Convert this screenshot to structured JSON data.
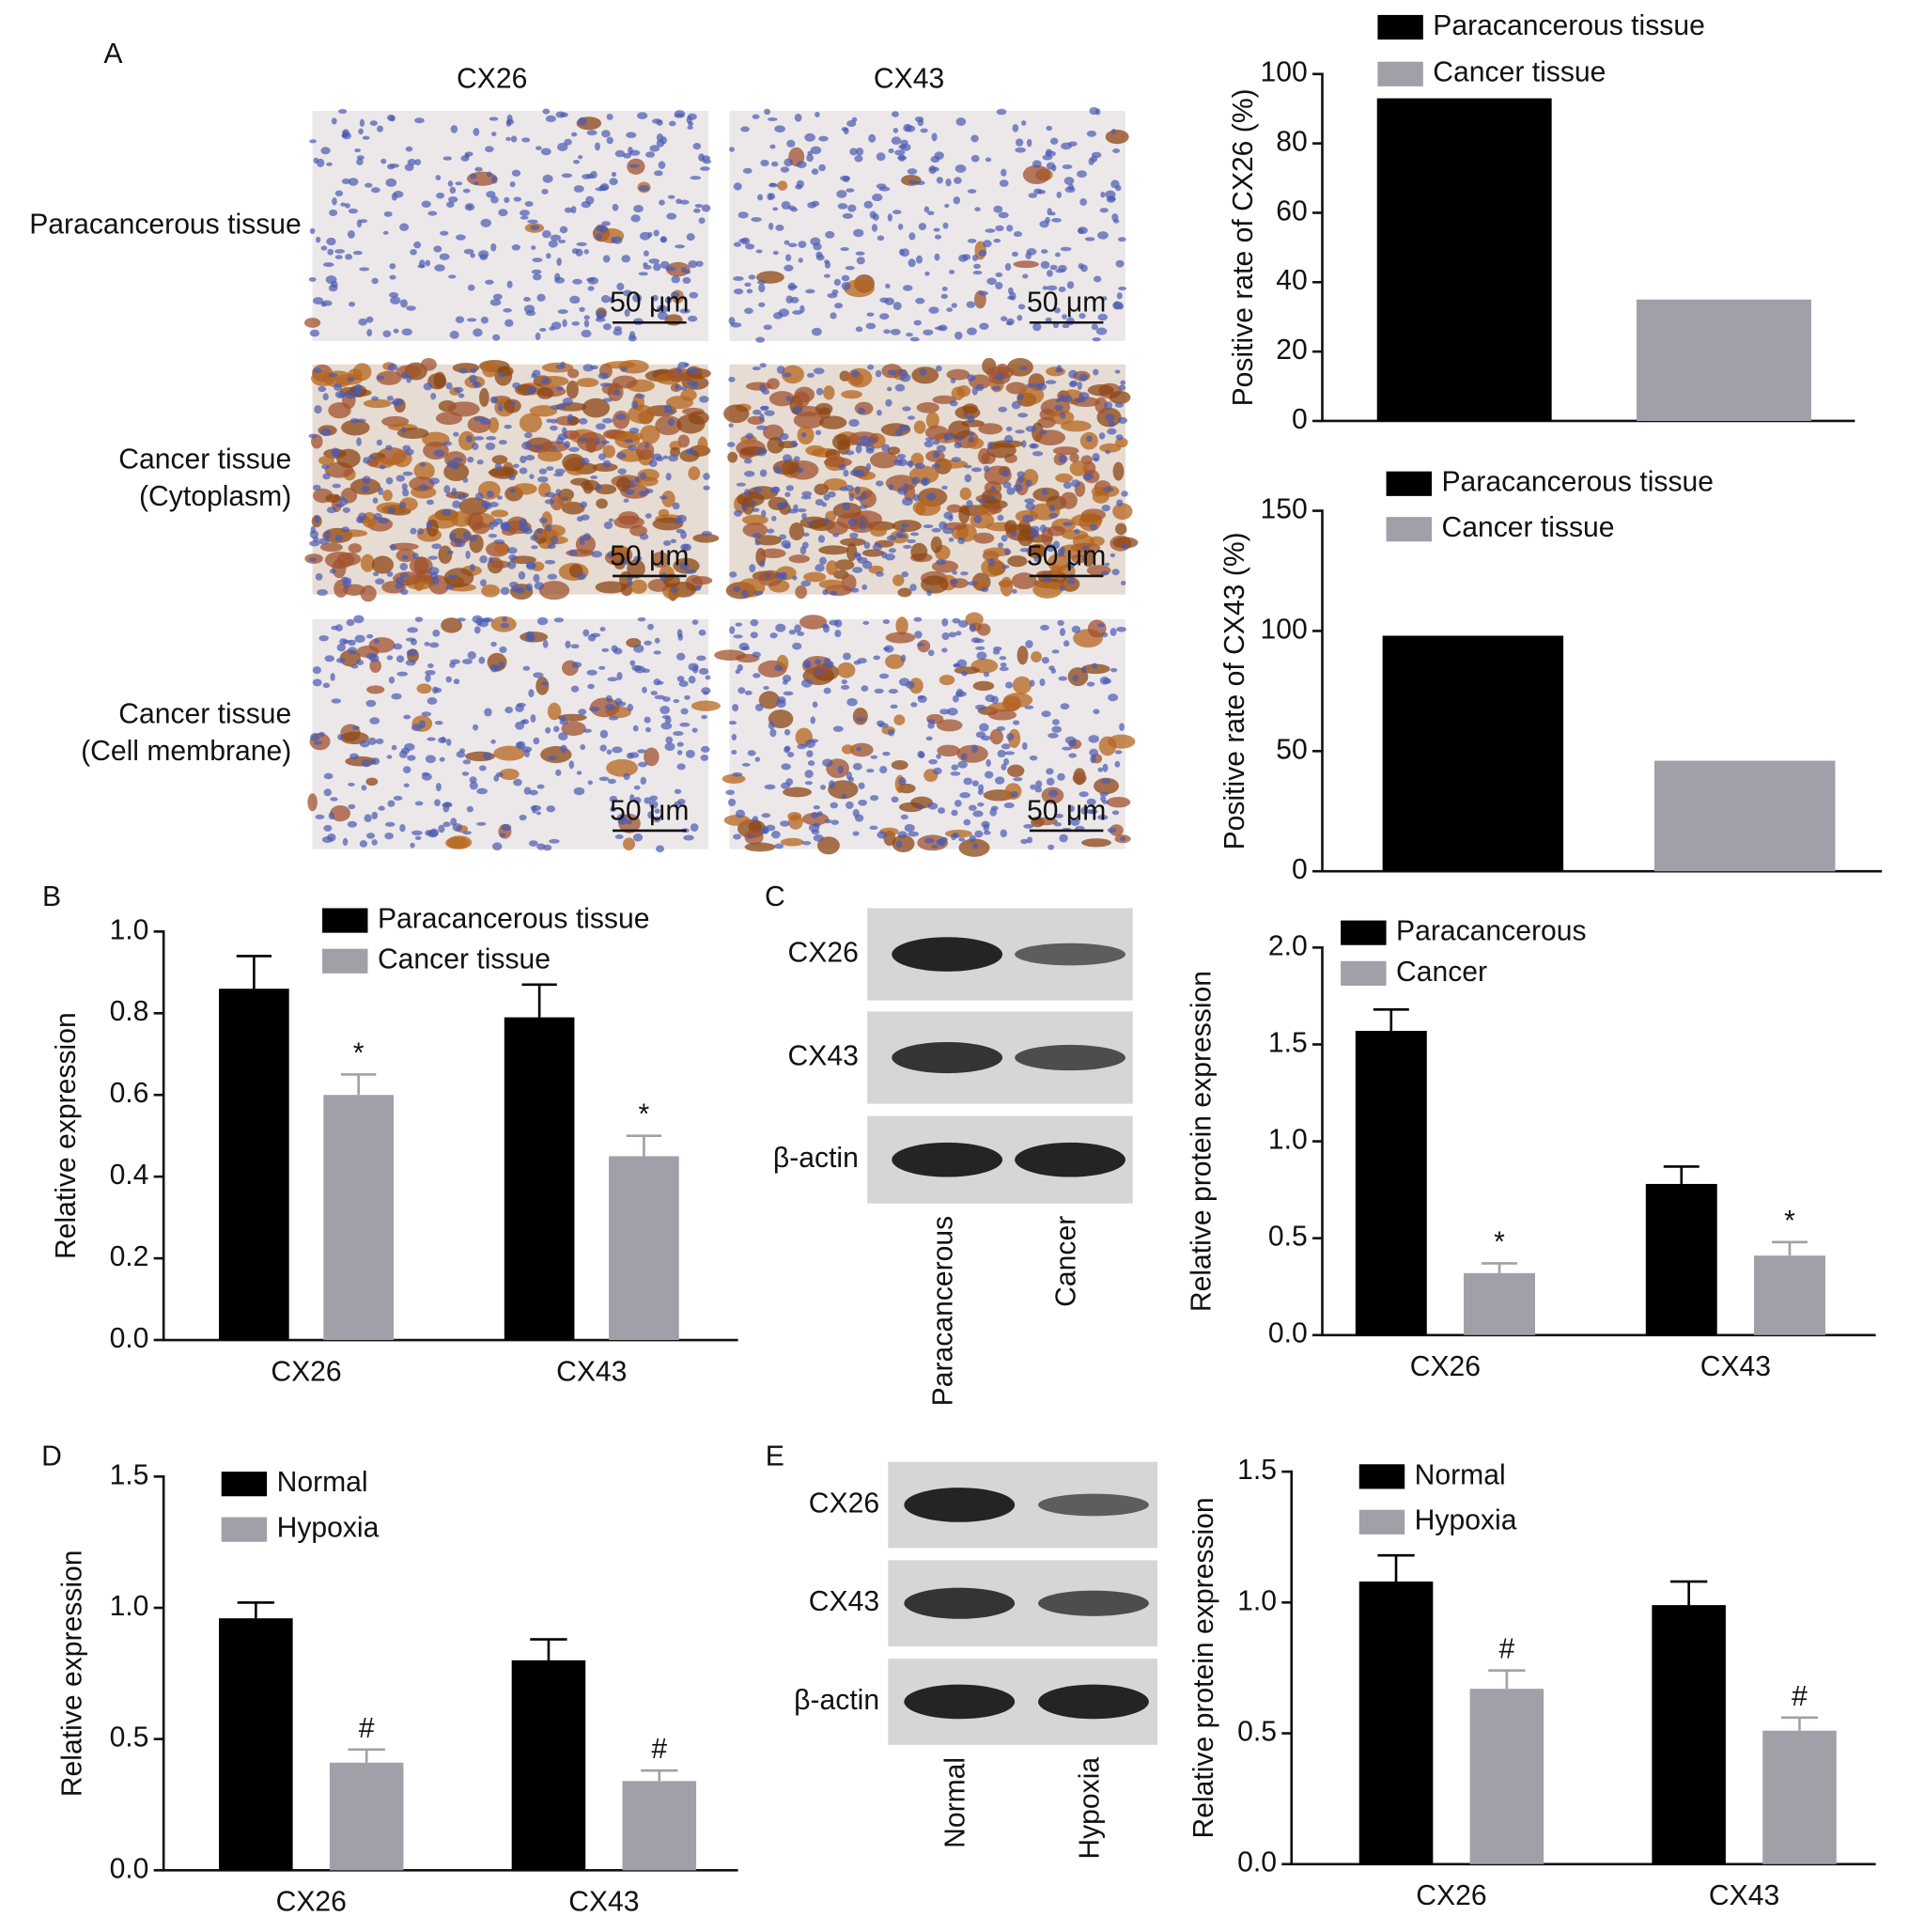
{
  "panel_labels": [
    "A",
    "B",
    "C",
    "D",
    "E"
  ],
  "micrographs": {
    "columns": [
      "CX26",
      "CX43"
    ],
    "rows": [
      [
        "Paracancerous tissue"
      ],
      [
        "Cancer tissue",
        "(Cytoplasm)"
      ],
      [
        "Cancer tissue",
        "(Cell membrane)"
      ]
    ],
    "scale_bar": "50 μm"
  },
  "blots": [
    {
      "bands": [
        "CX26",
        "CX43",
        "β-actin"
      ],
      "lanes": [
        "Paracancerous",
        "Cancer"
      ]
    },
    {
      "bands": [
        "CX26",
        "CX43",
        "β-actin"
      ],
      "lanes": [
        "Normal",
        "Hypoxia"
      ]
    }
  ],
  "chart_data": [
    {
      "type": "bar",
      "y_label": "Positive rate of CX26 (%)",
      "categories": [
        null
      ],
      "series": [
        {
          "name": "Paracancerous tissue",
          "color": "#000000",
          "values": [
            93
          ]
        },
        {
          "name": "Cancer tissue",
          "color": "#a0a0a8",
          "values": [
            35
          ]
        }
      ],
      "ylim": [
        0,
        100
      ],
      "yticks": [
        0,
        20,
        40,
        60,
        80,
        100
      ]
    },
    {
      "type": "bar",
      "y_label": "Positive rate of CX43 (%)",
      "categories": [
        null
      ],
      "series": [
        {
          "name": "Paracancerous tissue",
          "color": "#000000",
          "values": [
            98
          ]
        },
        {
          "name": "Cancer tissue",
          "color": "#a0a0a8",
          "values": [
            46
          ]
        }
      ],
      "ylim": [
        0,
        150
      ],
      "yticks": [
        0,
        50,
        100,
        150
      ]
    },
    {
      "type": "bar",
      "y_label": "Relative expression",
      "categories": [
        "CX26",
        "CX43"
      ],
      "series": [
        {
          "name": "Paracancerous tissue",
          "color": "#000000",
          "values": [
            0.86,
            0.79
          ],
          "errors": [
            0.08,
            0.08
          ]
        },
        {
          "name": "Cancer tissue",
          "color": "#a0a0a8",
          "values": [
            0.6,
            0.45
          ],
          "errors": [
            0.05,
            0.05
          ],
          "annotations": [
            "*",
            "*"
          ]
        }
      ],
      "ylim": [
        0,
        1
      ],
      "yticks": [
        {
          "value": 0,
          "label": "0.0"
        },
        0.2,
        0.4,
        0.6,
        0.8,
        {
          "value": 1,
          "label": "1.0"
        }
      ]
    },
    {
      "type": "bar",
      "y_label": "Relative protein expression",
      "categories": [
        "CX26",
        "CX43"
      ],
      "series": [
        {
          "name": "Paracancerous",
          "color": "#000000",
          "values": [
            1.57,
            0.78
          ],
          "errors": [
            0.11,
            0.09
          ]
        },
        {
          "name": "Cancer",
          "color": "#a0a0a8",
          "values": [
            0.32,
            0.41
          ],
          "errors": [
            0.05,
            0.07
          ],
          "annotations": [
            "*",
            "*"
          ]
        }
      ],
      "ylim": [
        0,
        2
      ],
      "yticks": [
        {
          "value": 0,
          "label": "0.0"
        },
        0.5,
        {
          "value": 1,
          "label": "1.0"
        },
        1.5,
        {
          "value": 2,
          "label": "2.0"
        }
      ]
    },
    {
      "type": "bar",
      "y_label": "Relative expression",
      "categories": [
        "CX26",
        "CX43"
      ],
      "series": [
        {
          "name": "Normal",
          "color": "#000000",
          "values": [
            0.96,
            0.8
          ],
          "errors": [
            0.06,
            0.08
          ]
        },
        {
          "name": "Hypoxia",
          "color": "#a0a0a8",
          "values": [
            0.41,
            0.34
          ],
          "errors": [
            0.05,
            0.04
          ],
          "annotations": [
            "#",
            "#"
          ]
        }
      ],
      "ylim": [
        0,
        1.5
      ],
      "yticks": [
        {
          "value": 0,
          "label": "0.0"
        },
        0.5,
        {
          "value": 1,
          "label": "1.0"
        },
        1.5
      ]
    },
    {
      "type": "bar",
      "y_label": "Relative protein expression",
      "categories": [
        "CX26",
        "CX43"
      ],
      "series": [
        {
          "name": "Normal",
          "color": "#000000",
          "values": [
            1.08,
            0.99
          ],
          "errors": [
            0.1,
            0.09
          ]
        },
        {
          "name": "Hypoxia",
          "color": "#a0a0a8",
          "values": [
            0.67,
            0.51
          ],
          "errors": [
            0.07,
            0.05
          ],
          "annotations": [
            "#",
            "#"
          ]
        }
      ],
      "ylim": [
        0,
        1.5
      ],
      "yticks": [
        {
          "value": 0,
          "label": "0.0"
        },
        0.5,
        {
          "value": 1,
          "label": "1.0"
        },
        1.5
      ]
    }
  ]
}
